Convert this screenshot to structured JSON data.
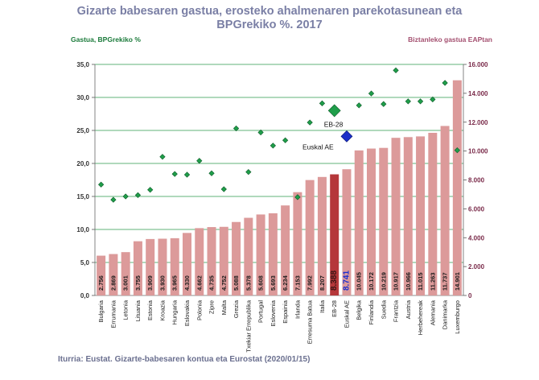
{
  "title_line1": "Gizarte babesaren gastua, erosteko ahalmenaren parekotasunean eta",
  "title_line2": "BPGrekiko %. 2017",
  "left_axis_title": "Gastua, BPGrekiko %",
  "right_axis_title": "Biztanleko gastua EAPtan",
  "source": "Iturria: Eustat. Gizarte-babesaren kontua eta Eurostat (2020/01/15)",
  "colors": {
    "bar": "#dc9a9a",
    "bar_highlight": "#b5373a",
    "diamond": "#1f9e4a",
    "diamond_euskal": "#1c30c8",
    "gridline": "#2e9a4e",
    "value_highlight_euskal": "#1a2fd0"
  },
  "chart_data": {
    "type": "bar",
    "categories": [
      "Bulgaria",
      "Errumania",
      "Letonia",
      "Lituania",
      "Estonia",
      "Kroazia",
      "Hungaria",
      "Eslovakia",
      "Polonia",
      "Zipre",
      "Malta",
      "Grezia",
      "Txekiar Errepublika",
      "Portugal",
      "Eslovenia",
      "Espainia",
      "Irlanda",
      "Erresuma Batua",
      "Italia",
      "EB-28",
      "Euskal AE",
      "Belgika",
      "Finlandia",
      "Suedia",
      "Frantzia",
      "Austria",
      "Herbehereak",
      "Alemania",
      "Danimarka",
      "Luxemburgo"
    ],
    "series": [
      {
        "name": "Gastua, BPGrekiko %",
        "axis": "left",
        "chart": "diamond",
        "values": [
          16.8,
          14.5,
          15.0,
          15.2,
          16.0,
          21.0,
          18.4,
          18.3,
          20.4,
          18.5,
          16.1,
          25.3,
          18.7,
          24.7,
          22.7,
          23.5,
          14.9,
          26.2,
          29.1,
          28.0,
          24.1,
          28.8,
          30.6,
          29.0,
          34.1,
          29.4,
          29.4,
          29.7,
          32.2,
          22.0
        ]
      },
      {
        "name": "Biztanleko gastua EAPtan",
        "axis": "right",
        "chart": "bar",
        "values": [
          2756,
          2869,
          3001,
          3755,
          3909,
          3930,
          3965,
          4330,
          4662,
          4735,
          4752,
          5088,
          5378,
          5608,
          5693,
          6234,
          7153,
          7992,
          8207,
          8388,
          8741,
          10045,
          10172,
          10219,
          10917,
          10966,
          11015,
          11263,
          11737,
          14901
        ],
        "value_labels": [
          "2.756",
          "2.869",
          "3.001",
          "3.755",
          "3.909",
          "3.930",
          "3.965",
          "4.330",
          "4.662",
          "4.735",
          "4.752",
          "5.088",
          "5.378",
          "5.608",
          "5.693",
          "6.234",
          "7.153",
          "7.992",
          "8.207",
          "8.388",
          "8.741",
          "10.045",
          "10.172",
          "10.219",
          "10.917",
          "10.966",
          "11.015",
          "11.263",
          "11.737",
          "14.901"
        ]
      }
    ],
    "left_axis": {
      "min": 0,
      "max": 35,
      "step": 5,
      "tick_labels": [
        "0,0",
        "5,0",
        "10,0",
        "15,0",
        "20,0",
        "25,0",
        "30,0",
        "35,0"
      ]
    },
    "right_axis": {
      "min": 0,
      "max": 16000,
      "step": 2000,
      "tick_labels": [
        "0",
        "2.000",
        "4.000",
        "6.000",
        "8.000",
        "10.000",
        "12.000",
        "14.000",
        "16.000"
      ]
    },
    "annotations": [
      "EB-28",
      "Euskal AE"
    ],
    "highlight_bar": "EB-28",
    "highlight_marker_eb": "EB-28",
    "highlight_marker_euskal": "Euskal AE",
    "grid": true
  }
}
